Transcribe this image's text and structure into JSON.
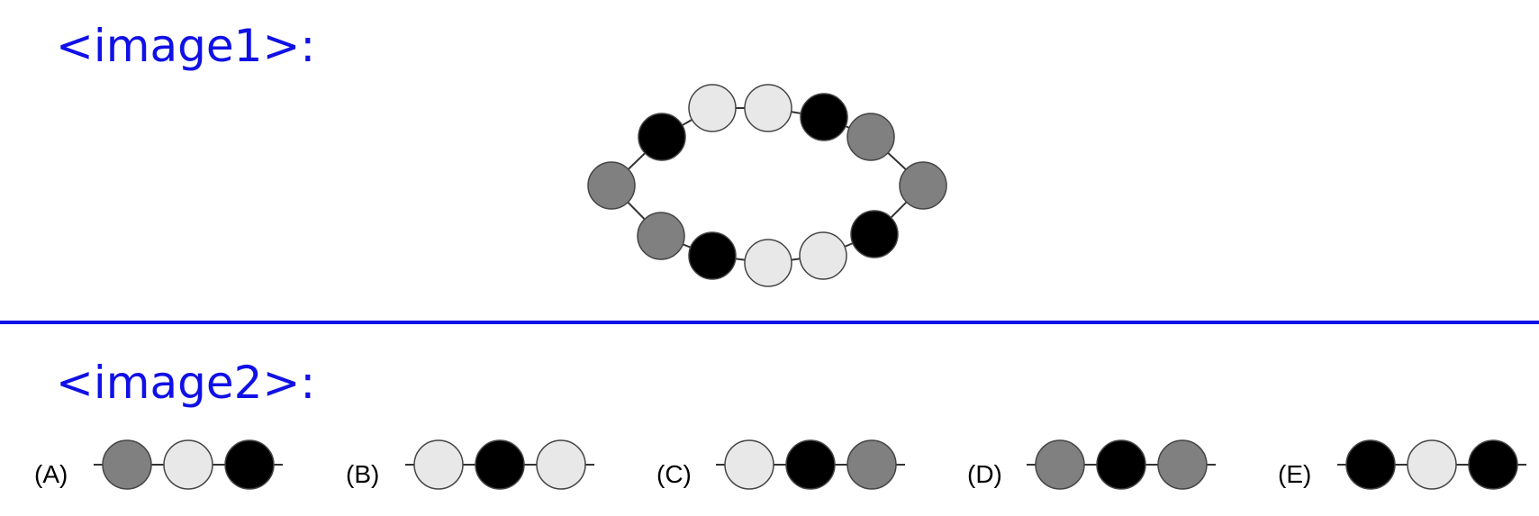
{
  "headings": {
    "image1": "<image1>:",
    "image2": "<image2>:"
  },
  "colors": {
    "heading": "#1010e6",
    "dark": "#000000",
    "gray": "#808080",
    "light": "#e8e8e8",
    "outline": "#444444"
  },
  "ring": {
    "beads": [
      "light",
      "light",
      "dark",
      "gray",
      "gray",
      "dark",
      "light",
      "light",
      "dark",
      "gray",
      "gray",
      "dark"
    ]
  },
  "options": [
    {
      "label": "(A)",
      "beads": [
        "gray",
        "light",
        "dark"
      ]
    },
    {
      "label": "(B)",
      "beads": [
        "light",
        "dark",
        "light"
      ]
    },
    {
      "label": "(C)",
      "beads": [
        "light",
        "dark",
        "gray"
      ]
    },
    {
      "label": "(D)",
      "beads": [
        "gray",
        "dark",
        "gray"
      ]
    },
    {
      "label": "(E)",
      "beads": [
        "dark",
        "light",
        "dark"
      ]
    }
  ]
}
